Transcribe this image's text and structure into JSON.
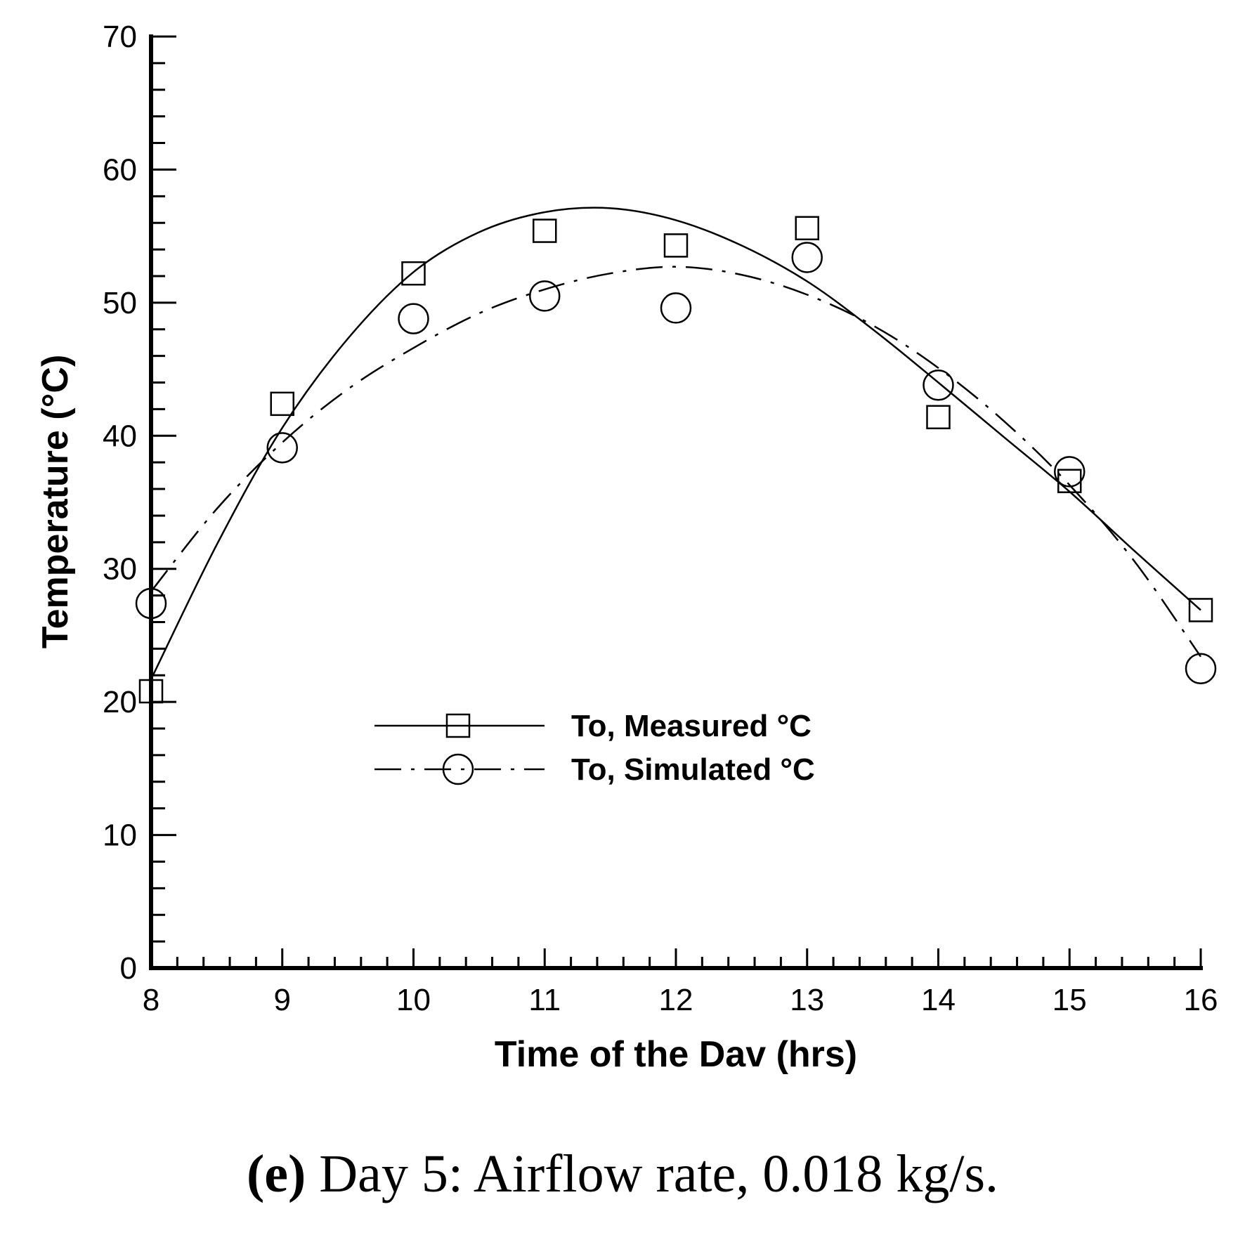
{
  "chart_data": {
    "type": "line",
    "title": "",
    "xlabel": "Time of the Dav (hrs)",
    "ylabel": "Temperature (°C)",
    "xlim": [
      8,
      16
    ],
    "ylim": [
      0,
      70
    ],
    "x_ticks": [
      8,
      9,
      10,
      11,
      12,
      13,
      14,
      15,
      16
    ],
    "y_ticks": [
      0,
      10,
      20,
      30,
      40,
      50,
      60,
      70
    ],
    "x_minor_step": 0.2,
    "y_minor_step": 2,
    "legend_position": "center",
    "series": [
      {
        "name": "To, Measured °C",
        "line_style": "solid",
        "marker": "square",
        "points": [
          {
            "x": 8,
            "y": 20.8
          },
          {
            "x": 9,
            "y": 42.4
          },
          {
            "x": 10,
            "y": 52.2
          },
          {
            "x": 11,
            "y": 55.4
          },
          {
            "x": 12,
            "y": 54.3
          },
          {
            "x": 13,
            "y": 55.6
          },
          {
            "x": 14,
            "y": 41.4
          },
          {
            "x": 15,
            "y": 36.6
          },
          {
            "x": 16,
            "y": 26.9
          }
        ],
        "fit_curve": [
          {
            "x": 8.0,
            "y": 21.7
          },
          {
            "x": 8.5,
            "y": 31.8
          },
          {
            "x": 9.0,
            "y": 40.6
          },
          {
            "x": 9.5,
            "y": 47.3
          },
          {
            "x": 10.0,
            "y": 52.3
          },
          {
            "x": 10.5,
            "y": 55.3
          },
          {
            "x": 11.0,
            "y": 56.8
          },
          {
            "x": 11.5,
            "y": 57.1
          },
          {
            "x": 12.0,
            "y": 56.2
          },
          {
            "x": 12.5,
            "y": 54.3
          },
          {
            "x": 13.0,
            "y": 51.6
          },
          {
            "x": 13.5,
            "y": 48.0
          },
          {
            "x": 14.0,
            "y": 44.0
          },
          {
            "x": 14.5,
            "y": 39.9
          },
          {
            "x": 15.0,
            "y": 35.8
          },
          {
            "x": 15.5,
            "y": 31.3
          },
          {
            "x": 16.0,
            "y": 26.9
          }
        ]
      },
      {
        "name": "To, Simulated °C",
        "line_style": "dash-dot",
        "marker": "circle",
        "points": [
          {
            "x": 8,
            "y": 27.4
          },
          {
            "x": 9,
            "y": 39.1
          },
          {
            "x": 10,
            "y": 48.8
          },
          {
            "x": 11,
            "y": 50.5
          },
          {
            "x": 12,
            "y": 49.6
          },
          {
            "x": 13,
            "y": 53.4
          },
          {
            "x": 14,
            "y": 43.8
          },
          {
            "x": 15,
            "y": 37.3
          },
          {
            "x": 16,
            "y": 22.5
          }
        ],
        "fit_curve": [
          {
            "x": 8.0,
            "y": 28.3
          },
          {
            "x": 8.5,
            "y": 34.5
          },
          {
            "x": 9.0,
            "y": 39.5
          },
          {
            "x": 9.5,
            "y": 43.5
          },
          {
            "x": 10.0,
            "y": 46.6
          },
          {
            "x": 10.5,
            "y": 49.2
          },
          {
            "x": 11.0,
            "y": 51.0
          },
          {
            "x": 11.5,
            "y": 52.2
          },
          {
            "x": 12.0,
            "y": 52.7
          },
          {
            "x": 12.5,
            "y": 52.1
          },
          {
            "x": 13.0,
            "y": 50.6
          },
          {
            "x": 13.5,
            "y": 48.3
          },
          {
            "x": 14.0,
            "y": 45.1
          },
          {
            "x": 14.5,
            "y": 41.1
          },
          {
            "x": 15.0,
            "y": 36.3
          },
          {
            "x": 15.5,
            "y": 30.5
          },
          {
            "x": 16.0,
            "y": 23.4
          }
        ]
      }
    ]
  },
  "caption": {
    "label": "(e)",
    "text": " Day 5: Airflow rate, 0.018 kg/s."
  }
}
